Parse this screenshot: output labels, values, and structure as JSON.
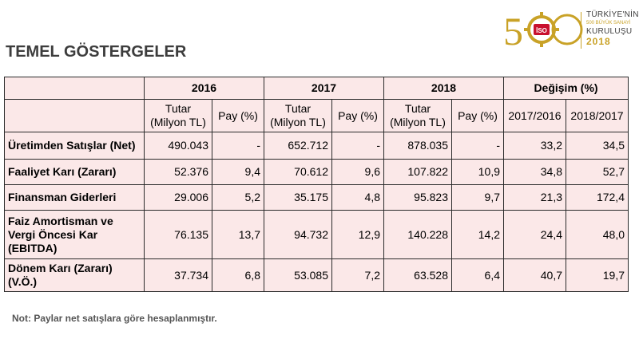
{
  "page": {
    "title": "TEMEL GÖSTERGELER"
  },
  "logo": {
    "line1": "TÜRKİYE'NİN",
    "line2": "500 BÜYÜK SANAYİ",
    "line3": "KURULUŞU",
    "year": "2018",
    "emblem": "İSO",
    "number_glyphs": [
      "5",
      "0",
      "0"
    ]
  },
  "table": {
    "years": [
      "2016",
      "2017",
      "2018"
    ],
    "change_header": "Değişim (%)",
    "sub_headers": {
      "amount": "Tutar (Milyon TL)",
      "share": "Pay (%)",
      "change1": "2017/2016",
      "change2": "2018/2017"
    },
    "rows": [
      {
        "label": "Üretimden Satışlar (Net)",
        "v2016": "490.043",
        "p2016": "-",
        "v2017": "652.712",
        "p2017": "-",
        "v2018": "878.035",
        "p2018": "-",
        "c1": "33,2",
        "c2": "34,5"
      },
      {
        "label": "Faaliyet Karı (Zararı)",
        "v2016": "52.376",
        "p2016": "9,4",
        "v2017": "70.612",
        "p2017": "9,6",
        "v2018": "107.822",
        "p2018": "10,9",
        "c1": "34,8",
        "c2": "52,7"
      },
      {
        "label": "Finansman Giderleri",
        "v2016": "29.006",
        "p2016": "5,2",
        "v2017": "35.175",
        "p2017": "4,8",
        "v2018": "95.823",
        "p2018": "9,7",
        "c1": "21,3",
        "c2": "172,4"
      },
      {
        "label": "Faiz Amortisman ve Vergi Öncesi Kar (EBITDA)",
        "v2016": "76.135",
        "p2016": "13,7",
        "v2017": "94.732",
        "p2017": "12,9",
        "v2018": "140.228",
        "p2018": "14,2",
        "c1": "24,4",
        "c2": "48,0"
      },
      {
        "label": "Dönem Karı (Zararı) (V.Ö.)",
        "v2016": "37.734",
        "p2016": "6,8",
        "v2017": "53.085",
        "p2017": "7,2",
        "v2018": "63.528",
        "p2018": "6,4",
        "c1": "40,7",
        "c2": "19,7"
      }
    ]
  },
  "note": "Not: Paylar net satışlara göre hesaplanmıştır.",
  "colors": {
    "table_bg": "#fbe8e8",
    "gold": "#c9a227",
    "title": "#3d3d3d",
    "emblem_red": "#c8102e"
  }
}
